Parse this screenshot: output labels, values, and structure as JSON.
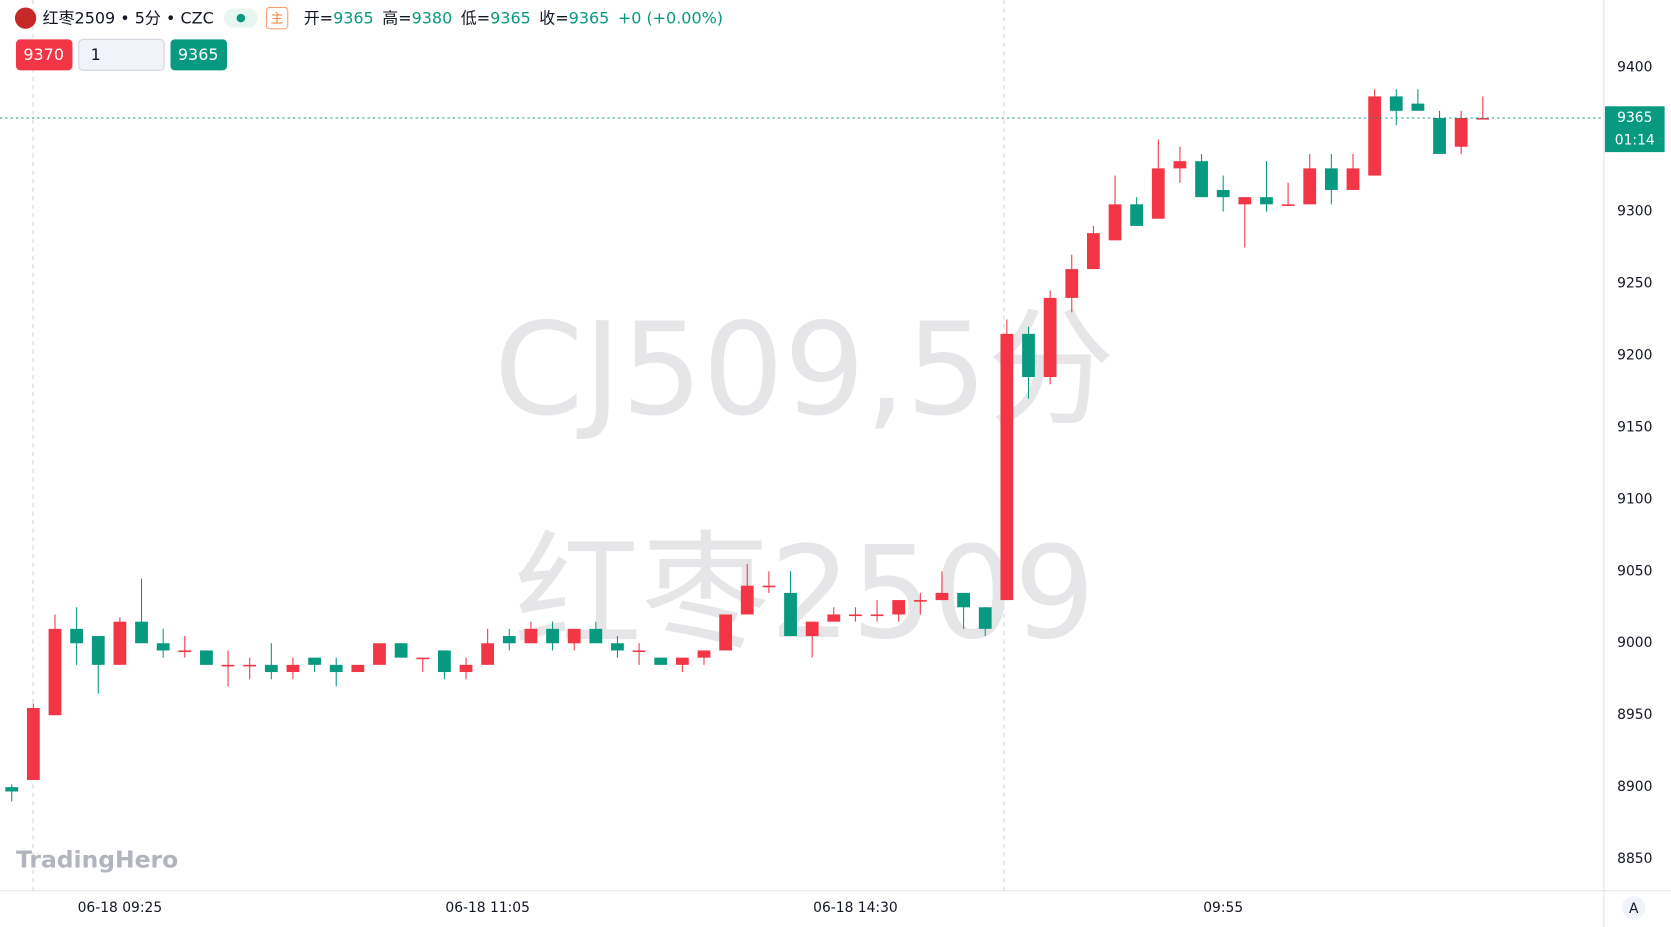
{
  "header": {
    "symbol": "红枣2509 • 5分 • CZC",
    "badge": "主",
    "ohlc": [
      {
        "label": "开=",
        "value": 9365
      },
      {
        "label": "高=",
        "value": 9380
      },
      {
        "label": "低=",
        "value": 9365
      },
      {
        "label": "收=",
        "value": 9365
      }
    ],
    "change": "+0 (+0.00%)"
  },
  "trade": {
    "sell": "9370",
    "quantity": "1",
    "buy": "9365"
  },
  "watermark": {
    "line1": "CJ509,5分",
    "line2": "红枣2509"
  },
  "logo": "TradingHero",
  "auto_button": "A",
  "chart_data": {
    "type": "candlestick",
    "up_color": "#f23645",
    "down_color": "#089981",
    "grid": false,
    "categories": [
      null,
      null,
      null,
      null,
      null,
      "06-18 09:25",
      null,
      null,
      null,
      null,
      null,
      null,
      null,
      null,
      null,
      null,
      null,
      null,
      null,
      null,
      null,
      null,
      "06-18 11:05",
      null,
      null,
      null,
      null,
      null,
      null,
      null,
      null,
      null,
      null,
      null,
      null,
      null,
      null,
      null,
      null,
      "06-18 14:30",
      null,
      null,
      null,
      null,
      null,
      null,
      null,
      null,
      null,
      null,
      null,
      null,
      null,
      null,
      null,
      null,
      "09:55",
      null,
      null,
      null,
      null,
      null,
      null,
      null,
      null,
      null,
      null,
      null,
      null
    ],
    "open": [
      8900,
      8905,
      8950,
      9010,
      9005,
      8985,
      9015,
      9000,
      8995,
      8995,
      8985,
      8985,
      8985,
      8980,
      8990,
      8985,
      8980,
      8985,
      9000,
      8990,
      8995,
      8980,
      8985,
      9005,
      9000,
      9010,
      9000,
      9010,
      9000,
      8995,
      8990,
      8985,
      8990,
      8995,
      9020,
      9040,
      9035,
      9005,
      9015,
      9020,
      9020,
      9020,
      9030,
      9030,
      9035,
      9025,
      9030,
      9215,
      9185,
      9240,
      9260,
      9280,
      9305,
      9295,
      9330,
      9335,
      9315,
      9305,
      9310,
      9305,
      9305,
      9330,
      9315,
      9325,
      9380,
      9375,
      9365,
      9345,
      9365
    ],
    "high": [
      8902,
      8958,
      9020,
      9025,
      9005,
      9018,
      9045,
      9010,
      9005,
      8995,
      8995,
      8990,
      9000,
      8990,
      8990,
      8990,
      8985,
      9000,
      9000,
      8990,
      8995,
      8990,
      9010,
      9010,
      9015,
      9015,
      9010,
      9015,
      9005,
      9000,
      8990,
      8990,
      8995,
      9020,
      9055,
      9050,
      9050,
      9015,
      9025,
      9025,
      9030,
      9030,
      9035,
      9050,
      9035,
      9025,
      9225,
      9220,
      9245,
      9270,
      9290,
      9325,
      9310,
      9350,
      9345,
      9340,
      9325,
      9310,
      9335,
      9320,
      9340,
      9340,
      9340,
      9385,
      9385,
      9385,
      9370,
      9370,
      9380
    ],
    "low": [
      8890,
      8905,
      8950,
      8985,
      8965,
      8985,
      9000,
      8990,
      8990,
      8985,
      8970,
      8975,
      8975,
      8975,
      8980,
      8970,
      8980,
      8985,
      8990,
      8980,
      8975,
      8975,
      8985,
      8995,
      9000,
      8995,
      8995,
      9000,
      8990,
      8985,
      8985,
      8980,
      8985,
      8995,
      9020,
      9035,
      9005,
      8990,
      9015,
      9015,
      9015,
      9015,
      9020,
      9030,
      9010,
      9005,
      9030,
      9170,
      9180,
      9230,
      9260,
      9280,
      9290,
      9295,
      9320,
      9310,
      9300,
      9275,
      9300,
      9305,
      9305,
      9305,
      9315,
      9325,
      9360,
      9370,
      9340,
      9340,
      9365
    ],
    "close": [
      8897,
      8955,
      9010,
      9000,
      8985,
      9015,
      9000,
      8995,
      8995,
      8985,
      8985,
      8985,
      8980,
      8985,
      8985,
      8980,
      8985,
      9000,
      8990,
      8990,
      8980,
      8985,
      9000,
      9000,
      9010,
      9000,
      9010,
      9000,
      8995,
      8995,
      8985,
      8990,
      8995,
      9020,
      9040,
      9040,
      9005,
      9015,
      9020,
      9020,
      9020,
      9030,
      9030,
      9035,
      9025,
      9010,
      9215,
      9185,
      9240,
      9260,
      9285,
      9305,
      9290,
      9330,
      9335,
      9310,
      9310,
      9310,
      9305,
      9305,
      9330,
      9315,
      9330,
      9380,
      9370,
      9370,
      9340,
      9365,
      9365
    ],
    "last_price": 9365,
    "countdown": "01:14",
    "ylim": [
      8828,
      9447
    ],
    "yticks": [
      8850,
      8900,
      8950,
      9000,
      9050,
      9100,
      9150,
      9200,
      9250,
      9300,
      9350,
      9400
    ]
  }
}
